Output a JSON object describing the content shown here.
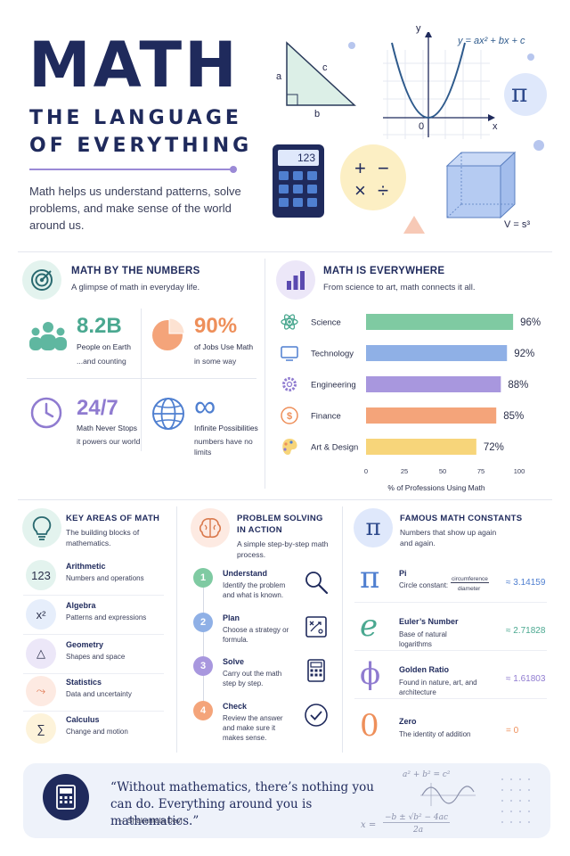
{
  "header": {
    "title": "MATH",
    "subtitle_line1": "THE LANGUAGE",
    "subtitle_line2": "OF EVERYTHING",
    "intro": "Math helps us understand patterns, solve problems, and make sense of the world around us."
  },
  "hero": {
    "triangle_labels": {
      "a": "a",
      "b": "b",
      "c": "c"
    },
    "graph": {
      "y_label": "y",
      "x_label": "x",
      "origin": "0",
      "equation": "y = ax² + bx + c"
    },
    "pi_symbol": "π",
    "calculator_display": "123",
    "operators": [
      "+",
      "−",
      "×",
      "÷"
    ],
    "cube_formula": "V = s³"
  },
  "numbers": {
    "title": "MATH BY THE NUMBERS",
    "subtitle": "A glimpse of math in everyday life.",
    "stats": [
      {
        "value": "8.2B",
        "label": "People on Earth",
        "sub": "...and counting",
        "icon": "people-icon",
        "color": "#5fb7a0"
      },
      {
        "value": "90%",
        "label": "of Jobs Use Math",
        "sub": "in some way",
        "icon": "pie-chart-icon",
        "color": "#ee8f5a"
      },
      {
        "value": "24/7",
        "label": "Math Never Stops",
        "sub": "it powers our world",
        "icon": "clock-icon",
        "color": "#8f7bd0"
      },
      {
        "value": "∞",
        "label": "Infinite Possibilities",
        "sub": "numbers have no limits",
        "icon": "infinity-icon",
        "color": "#4f7fd0"
      }
    ]
  },
  "everywhere": {
    "title": "MATH IS EVERYWHERE",
    "subtitle": "From science to art, math connects it all.",
    "chart_data": {
      "type": "bar",
      "orientation": "horizontal",
      "categories": [
        "Science",
        "Technology",
        "Engineering",
        "Finance",
        "Art & Design"
      ],
      "values": [
        96,
        92,
        88,
        85,
        72
      ],
      "value_labels": [
        "96%",
        "92%",
        "88%",
        "85%",
        "72%"
      ],
      "colors": [
        "#7fcaa2",
        "#8fb0e6",
        "#a897de",
        "#f4a47a",
        "#f7d57a"
      ],
      "xlim": [
        0,
        100
      ],
      "xticks": [
        "0",
        "25",
        "50",
        "75",
        "100"
      ],
      "xlabel": "% of Professions Using Math",
      "icons": [
        "atom-icon",
        "monitor-icon",
        "gear-icon",
        "dollar-icon",
        "palette-icon"
      ]
    }
  },
  "areas": {
    "title": "KEY AREAS OF MATH",
    "subtitle": "The building blocks of mathematics.",
    "items": [
      {
        "symbol": "123",
        "name": "Arithmetic",
        "desc": "Numbers and operations",
        "color": "#e3f3ee"
      },
      {
        "symbol": "x²",
        "name": "Algebra",
        "desc": "Patterns and expressions",
        "color": "#e6eefb"
      },
      {
        "symbol": "△",
        "name": "Geometry",
        "desc": "Shapes and space",
        "color": "#ece7f8"
      },
      {
        "symbol": "⤳",
        "name": "Statistics",
        "desc": "Data and uncertainty",
        "color": "#fdeae2"
      },
      {
        "symbol": "∑",
        "name": "Calculus",
        "desc": "Change and motion",
        "color": "#fdf3da"
      }
    ]
  },
  "problem": {
    "title_line1": "PROBLEM SOLVING",
    "title_line2": "IN ACTION",
    "subtitle": "A simple step-by-step math process.",
    "steps": [
      {
        "num": "1",
        "name": "Understand",
        "desc": "Identify the problem and what is known.",
        "color": "#7fcaa2",
        "icon": "magnifier-icon"
      },
      {
        "num": "2",
        "name": "Plan",
        "desc": "Choose a strategy or formula.",
        "color": "#8fb0e6",
        "icon": "strategy-board-icon"
      },
      {
        "num": "3",
        "name": "Solve",
        "desc": "Carry out the math step by step.",
        "color": "#a897de",
        "icon": "calculator-icon"
      },
      {
        "num": "4",
        "name": "Check",
        "desc": "Review the answer and make sure it makes sense.",
        "color": "#f4a47a",
        "icon": "checkmark-icon"
      }
    ]
  },
  "constants": {
    "title": "FAMOUS MATH CONSTANTS",
    "subtitle": "Numbers that show up again and again.",
    "items": [
      {
        "symbol": "π",
        "name": "Pi",
        "desc": "Circle constant:",
        "fraction_top": "circumference",
        "fraction_bottom": "diameter",
        "value": "≈ 3.14159",
        "color": "#4f7fd0"
      },
      {
        "symbol": "e",
        "name": "Euler’s Number",
        "desc": "Base of natural logarithms",
        "value": "≈ 2.71828",
        "color": "#4aa890"
      },
      {
        "symbol": "ϕ",
        "name": "Golden Ratio",
        "desc": "Found in nature, art, and architecture",
        "value": "≈ 1.61803",
        "color": "#8f7bd0"
      },
      {
        "symbol": "0",
        "name": "Zero",
        "desc": "The identity of addition",
        "value": "= 0",
        "color": "#ee8f5a"
      }
    ]
  },
  "quote": {
    "text": "“Without mathematics, there’s nothing you can do. Everything around you is mathematics.”",
    "author": "— Shakuntala Devi",
    "formula_top": "a² + b² = c²",
    "formula_x": "x =",
    "formula_num": "−b ± √b² − 4ac",
    "formula_den": "2a"
  }
}
